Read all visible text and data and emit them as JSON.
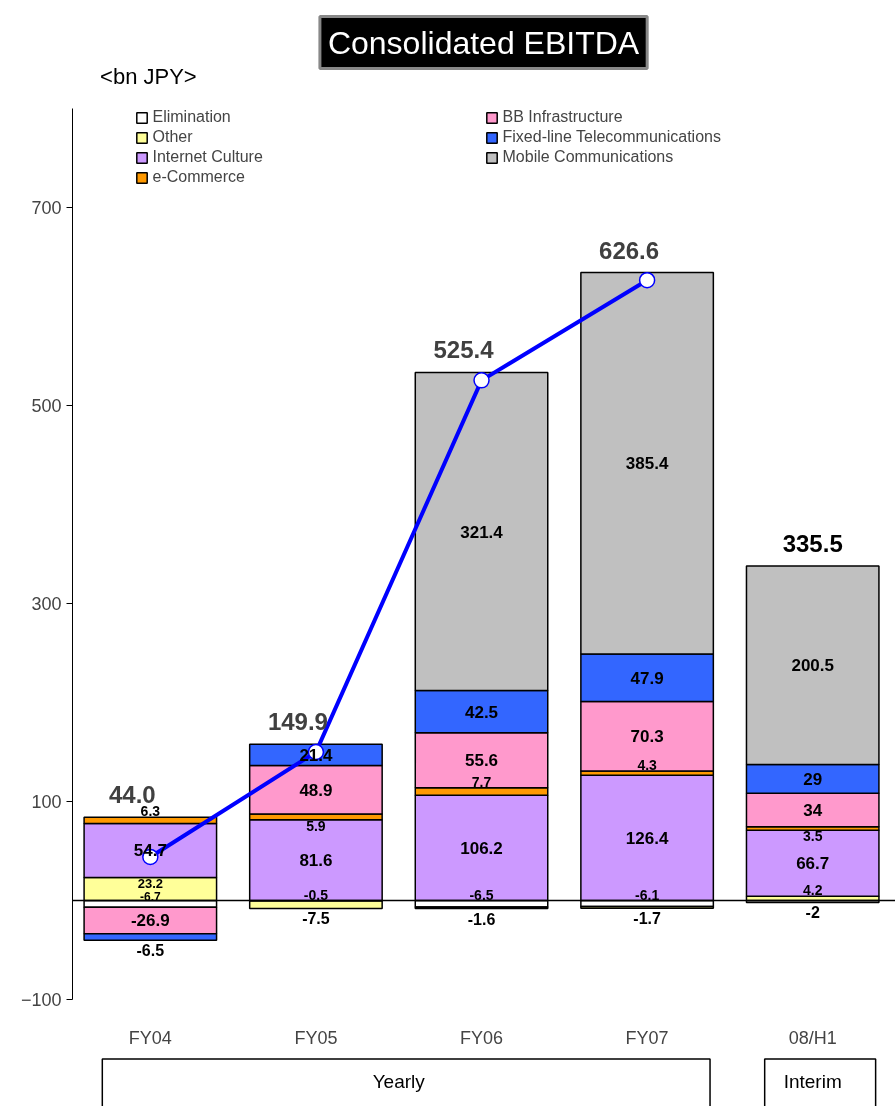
{
  "chart_data": {
    "type": "bar",
    "stacked": true,
    "title": "Consolidated EBITDA",
    "ylabel": "<bn JPY>",
    "categories": [
      "FY04",
      "FY05",
      "FY06",
      "FY07",
      "08/H1"
    ],
    "series": [
      {
        "name": "Elimination",
        "color": "#ffffff",
        "values": [
          -6.7,
          -0.5,
          -6.5,
          -6.1,
          -2
        ]
      },
      {
        "name": "Other",
        "color": "#ffff99",
        "values": [
          23.2,
          -7.5,
          -1.6,
          -1.7,
          4.2
        ]
      },
      {
        "name": "Internet Culture",
        "color": "#cc99ff",
        "values": [
          54.7,
          81.6,
          106.2,
          126.4,
          66.7
        ]
      },
      {
        "name": "e-Commerce",
        "color": "#ff9900",
        "values": [
          6.3,
          5.9,
          7.7,
          4.3,
          3.5
        ]
      },
      {
        "name": "BB Infrastructure",
        "color": "#ff99cc",
        "values": [
          -26.9,
          48.9,
          55.6,
          70.3,
          34
        ]
      },
      {
        "name": "Fixed-line Telecommunications",
        "color": "#3366ff",
        "values": [
          -6.5,
          21.4,
          42.5,
          47.9,
          29
        ]
      },
      {
        "name": "Mobile Communications",
        "color": "#c0c0c0",
        "values": [
          null,
          null,
          321.4,
          385.4,
          200.5
        ]
      },
      {
        "type": "line",
        "color": "#0000ff",
        "values": [
          44.0,
          149.9,
          525.4,
          626.6,
          null
        ],
        "value_labels": [
          "44.0",
          "149.9",
          "525.4",
          "626.6",
          null
        ]
      }
    ],
    "totals": [
      null,
      null,
      null,
      null,
      "335.5"
    ],
    "data_labels": true,
    "marker": "circle",
    "line_style": "solid",
    "legend": "top",
    "grid": false,
    "ylim": [
      -100,
      800
    ],
    "yticks": [
      -100,
      100,
      300,
      500,
      700
    ],
    "annotations": [
      "Yearly",
      "Interim"
    ]
  }
}
